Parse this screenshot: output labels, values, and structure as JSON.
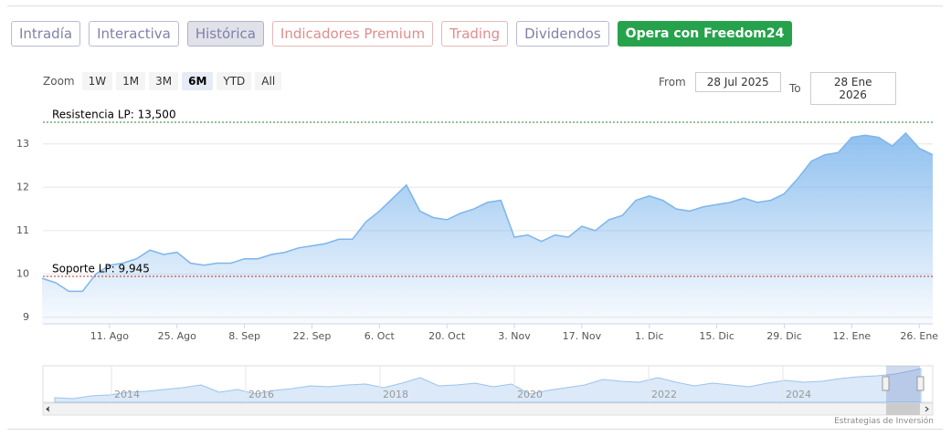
{
  "tabs": [
    "Intradía",
    "Interactiva",
    "Histórica",
    "Indicadores Premium",
    "Trading",
    "Dividendos",
    "Opera con Freedom24"
  ],
  "zoom": {
    "label": "Zoom",
    "buttons": [
      "1W",
      "1M",
      "3M",
      "6M",
      "YTD",
      "All"
    ],
    "active": "6M"
  },
  "range": {
    "from_label": "From",
    "from": "28 Jul 2025",
    "to_label": "To",
    "to": "28 Ene 2026"
  },
  "credit": "Estrategias de Inversión",
  "navigator": {
    "labels": [
      "2014",
      "2016",
      "2018",
      "2020",
      "2022",
      "2024"
    ]
  },
  "chart_data": {
    "type": "area",
    "color": "#7cb5ec",
    "grid": true,
    "categories": [
      null,
      null,
      null,
      null,
      null,
      "11. Ago",
      null,
      null,
      null,
      null,
      "25. Ago",
      null,
      null,
      null,
      null,
      "8. Sep",
      null,
      null,
      null,
      null,
      "22. Sep",
      null,
      null,
      null,
      null,
      "6. Oct",
      null,
      null,
      null,
      null,
      "20. Oct",
      null,
      null,
      null,
      null,
      "3. Nov",
      null,
      null,
      null,
      null,
      "17. Nov",
      null,
      null,
      null,
      null,
      "1. Dic",
      null,
      null,
      null,
      null,
      "15. Dic",
      null,
      null,
      null,
      null,
      "29. Dic",
      null,
      null,
      null,
      null,
      "12. Ene",
      null,
      null,
      null,
      null,
      "26. Ene",
      null
    ],
    "values": [
      9.9,
      9.8,
      9.6,
      9.6,
      10.0,
      10.2,
      10.25,
      10.35,
      10.55,
      10.45,
      10.5,
      10.25,
      10.2,
      10.25,
      10.25,
      10.35,
      10.35,
      10.45,
      10.5,
      10.6,
      10.65,
      10.7,
      10.8,
      10.8,
      11.2,
      11.45,
      11.75,
      12.05,
      11.45,
      11.3,
      11.25,
      11.4,
      11.5,
      11.65,
      11.7,
      10.85,
      10.9,
      10.75,
      10.9,
      10.85,
      11.1,
      11.0,
      11.25,
      11.35,
      11.7,
      11.8,
      11.7,
      11.5,
      11.45,
      11.55,
      11.6,
      11.65,
      11.75,
      11.65,
      11.7,
      11.85,
      12.2,
      12.6,
      12.75,
      12.8,
      13.15,
      13.2,
      13.15,
      12.95,
      13.25,
      12.9,
      12.75
    ],
    "ylim": [
      8.85,
      13.9
    ],
    "yticks": [
      9,
      10,
      11,
      12,
      13
    ],
    "plot_lines": [
      {
        "label": "Resistencia LP: 13,500",
        "value": 13.5,
        "color": "#2e7d32"
      },
      {
        "label": "Soporte LP: 9,945",
        "value": 9.945,
        "color": "#c62828"
      }
    ]
  }
}
